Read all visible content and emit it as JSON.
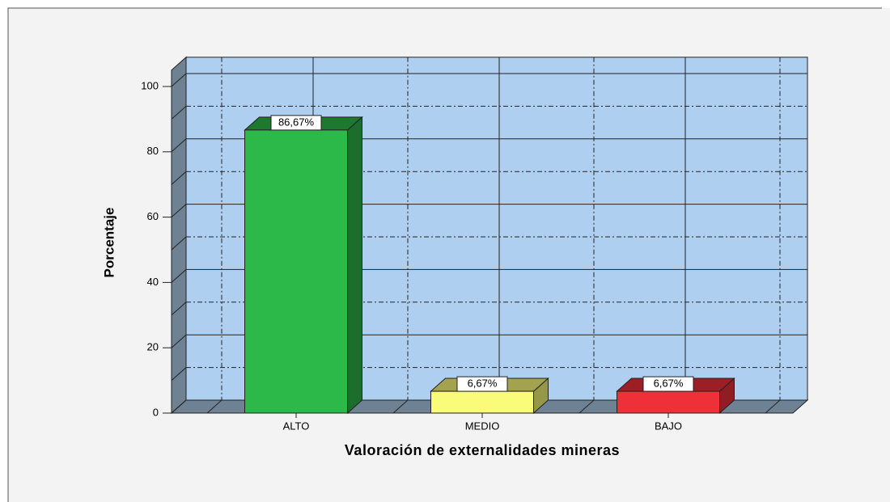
{
  "chart_data": {
    "type": "bar3d",
    "x_label": "Valoración de externalidades mineras",
    "y_label": "Porcentaje",
    "categories": [
      "ALTO",
      "MEDIO",
      "BAJO"
    ],
    "values": [
      86.67,
      6.67,
      6.67
    ],
    "value_labels": [
      "86,67%",
      "6,67%",
      "6,67%"
    ],
    "colors": [
      "#2db84a",
      "#fbfb7a",
      "#ee3038"
    ],
    "ylim": [
      0,
      105
    ],
    "yticks": [
      0,
      20,
      40,
      60,
      80,
      100
    ],
    "grid": true
  }
}
